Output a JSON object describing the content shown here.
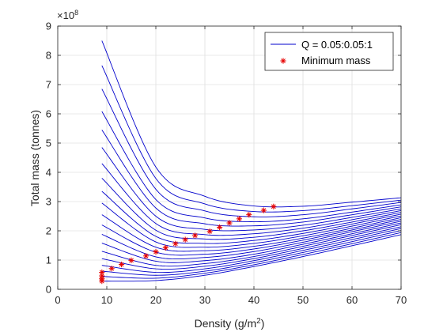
{
  "chart_data": {
    "type": "line",
    "title": "",
    "xlabel": "Density (g/m",
    "xlabel_superscript": "2",
    "xlabel_suffix": ")",
    "ylabel": "Total mass (tonnes)",
    "xlim": [
      0,
      70
    ],
    "ylim": [
      0,
      9
    ],
    "x_ticks": [
      "0",
      "10",
      "20",
      "30",
      "40",
      "50",
      "60",
      "70"
    ],
    "y_ticks": [
      "0",
      "1",
      "2",
      "3",
      "4",
      "5",
      "6",
      "7",
      "8",
      "9"
    ],
    "y_exponent_base": "×10",
    "y_exponent_power": "8",
    "grid": true,
    "legend": {
      "placement": "top-right",
      "entries": [
        {
          "label": "Q = 0.05:0.05:1",
          "marker": "line",
          "color": "#0000cc"
        },
        {
          "label": "Minimum mass",
          "marker": "asterisk",
          "color": "#e60000"
        }
      ]
    },
    "colors": {
      "curves": "#0000cc",
      "minimum": "#e60000",
      "grid": "#e0e0e0",
      "axis": "#262626"
    },
    "x_range": [
      9,
      70
    ],
    "series": [
      {
        "values": [
          [
            9,
            8.5
          ],
          [
            20,
            4.18
          ],
          [
            30,
            3.18
          ],
          [
            40,
            2.85
          ],
          [
            50,
            2.84
          ],
          [
            60,
            2.98
          ],
          [
            70,
            3.13
          ]
        ]
      },
      {
        "values": [
          [
            9,
            7.65
          ],
          [
            20,
            3.79
          ],
          [
            30,
            2.92
          ],
          [
            40,
            2.66
          ],
          [
            50,
            2.69
          ],
          [
            60,
            2.86
          ],
          [
            70,
            3.05
          ]
        ]
      },
      {
        "values": [
          [
            9,
            6.85
          ],
          [
            20,
            3.42
          ],
          [
            30,
            2.68
          ],
          [
            40,
            2.48
          ],
          [
            50,
            2.55
          ],
          [
            60,
            2.75
          ],
          [
            70,
            2.97
          ]
        ]
      },
      {
        "values": [
          [
            9,
            6.08
          ],
          [
            20,
            3.07
          ],
          [
            30,
            2.44
          ],
          [
            40,
            2.31
          ],
          [
            50,
            2.41
          ],
          [
            60,
            2.64
          ],
          [
            70,
            2.89
          ]
        ]
      },
      {
        "values": [
          [
            9,
            5.45
          ],
          [
            20,
            2.78
          ],
          [
            30,
            2.24
          ],
          [
            40,
            2.17
          ],
          [
            50,
            2.3
          ],
          [
            60,
            2.55
          ],
          [
            70,
            2.82
          ]
        ]
      },
      {
        "values": [
          [
            9,
            4.85
          ],
          [
            20,
            2.5
          ],
          [
            30,
            2.05
          ],
          [
            40,
            2.03
          ],
          [
            50,
            2.19
          ],
          [
            60,
            2.46
          ],
          [
            70,
            2.75
          ]
        ]
      },
      {
        "values": [
          [
            9,
            4.3
          ],
          [
            20,
            2.25
          ],
          [
            30,
            1.87
          ],
          [
            40,
            1.9
          ],
          [
            50,
            2.09
          ],
          [
            60,
            2.38
          ],
          [
            70,
            2.69
          ]
        ]
      },
      {
        "values": [
          [
            9,
            3.8
          ],
          [
            20,
            2.02
          ],
          [
            30,
            1.72
          ],
          [
            40,
            1.78
          ],
          [
            50,
            2.0
          ],
          [
            60,
            2.3
          ],
          [
            70,
            2.63
          ]
        ]
      },
      {
        "values": [
          [
            9,
            3.35
          ],
          [
            20,
            1.81
          ],
          [
            30,
            1.57
          ],
          [
            40,
            1.67
          ],
          [
            50,
            1.91
          ],
          [
            60,
            2.23
          ],
          [
            70,
            2.57
          ]
        ]
      },
      {
        "values": [
          [
            9,
            2.95
          ],
          [
            20,
            1.62
          ],
          [
            30,
            1.44
          ],
          [
            40,
            1.57
          ],
          [
            50,
            1.83
          ],
          [
            60,
            2.16
          ],
          [
            70,
            2.51
          ]
        ]
      },
      {
        "values": [
          [
            9,
            2.55
          ],
          [
            20,
            1.44
          ],
          [
            30,
            1.32
          ],
          [
            40,
            1.47
          ],
          [
            50,
            1.75
          ],
          [
            60,
            2.09
          ],
          [
            70,
            2.45
          ]
        ]
      },
      {
        "values": [
          [
            9,
            2.2
          ],
          [
            20,
            1.27
          ],
          [
            30,
            1.2
          ],
          [
            40,
            1.38
          ],
          [
            50,
            1.68
          ],
          [
            60,
            2.03
          ],
          [
            70,
            2.39
          ]
        ]
      },
      {
        "values": [
          [
            9,
            1.88
          ],
          [
            20,
            1.11
          ],
          [
            30,
            1.09
          ],
          [
            40,
            1.29
          ],
          [
            50,
            1.61
          ],
          [
            60,
            1.97
          ],
          [
            70,
            2.33
          ]
        ]
      },
      {
        "values": [
          [
            9,
            1.58
          ],
          [
            20,
            0.96
          ],
          [
            30,
            0.98
          ],
          [
            40,
            1.2
          ],
          [
            50,
            1.54
          ],
          [
            60,
            1.9
          ],
          [
            70,
            2.27
          ]
        ]
      },
      {
        "values": [
          [
            9,
            1.3
          ],
          [
            20,
            0.82
          ],
          [
            30,
            0.88
          ],
          [
            40,
            1.12
          ],
          [
            50,
            1.47
          ],
          [
            60,
            1.84
          ],
          [
            70,
            2.21
          ]
        ]
      },
      {
        "values": [
          [
            9,
            1.05
          ],
          [
            20,
            0.7
          ],
          [
            30,
            0.79
          ],
          [
            40,
            1.05
          ],
          [
            50,
            1.4
          ],
          [
            60,
            1.77
          ],
          [
            70,
            2.14
          ]
        ]
      },
      {
        "values": [
          [
            9,
            0.82
          ],
          [
            20,
            0.58
          ],
          [
            30,
            0.7
          ],
          [
            40,
            0.98
          ],
          [
            50,
            1.33
          ],
          [
            60,
            1.7
          ],
          [
            70,
            2.08
          ]
        ]
      },
      {
        "values": [
          [
            9,
            0.62
          ],
          [
            20,
            0.48
          ],
          [
            30,
            0.62
          ],
          [
            40,
            0.91
          ],
          [
            50,
            1.26
          ],
          [
            60,
            1.63
          ],
          [
            70,
            2.01
          ]
        ]
      },
      {
        "values": [
          [
            9,
            0.44
          ],
          [
            20,
            0.38
          ],
          [
            30,
            0.55
          ],
          [
            40,
            0.84
          ],
          [
            50,
            1.19
          ],
          [
            60,
            1.56
          ],
          [
            70,
            1.94
          ]
        ]
      },
      {
        "values": [
          [
            9,
            0.28
          ],
          [
            20,
            0.3
          ],
          [
            30,
            0.48
          ],
          [
            40,
            0.78
          ],
          [
            50,
            1.12
          ],
          [
            60,
            1.49
          ],
          [
            70,
            1.87
          ]
        ]
      }
    ],
    "minimum_points": [
      {
        "x": 44,
        "y": 2.83
      },
      {
        "x": 42,
        "y": 2.7
      },
      {
        "x": 39,
        "y": 2.55
      },
      {
        "x": 37,
        "y": 2.41
      },
      {
        "x": 35,
        "y": 2.27
      },
      {
        "x": 33,
        "y": 2.12
      },
      {
        "x": 31,
        "y": 1.98
      },
      {
        "x": 28,
        "y": 1.84
      },
      {
        "x": 26,
        "y": 1.7
      },
      {
        "x": 24,
        "y": 1.56
      },
      {
        "x": 22,
        "y": 1.42
      },
      {
        "x": 20,
        "y": 1.28
      },
      {
        "x": 18,
        "y": 1.14
      },
      {
        "x": 15,
        "y": 0.99
      },
      {
        "x": 13,
        "y": 0.85
      },
      {
        "x": 11,
        "y": 0.71
      },
      {
        "x": 9,
        "y": 0.58
      },
      {
        "x": 9,
        "y": 0.46
      },
      {
        "x": 9,
        "y": 0.36
      },
      {
        "x": 9,
        "y": 0.28
      }
    ]
  }
}
